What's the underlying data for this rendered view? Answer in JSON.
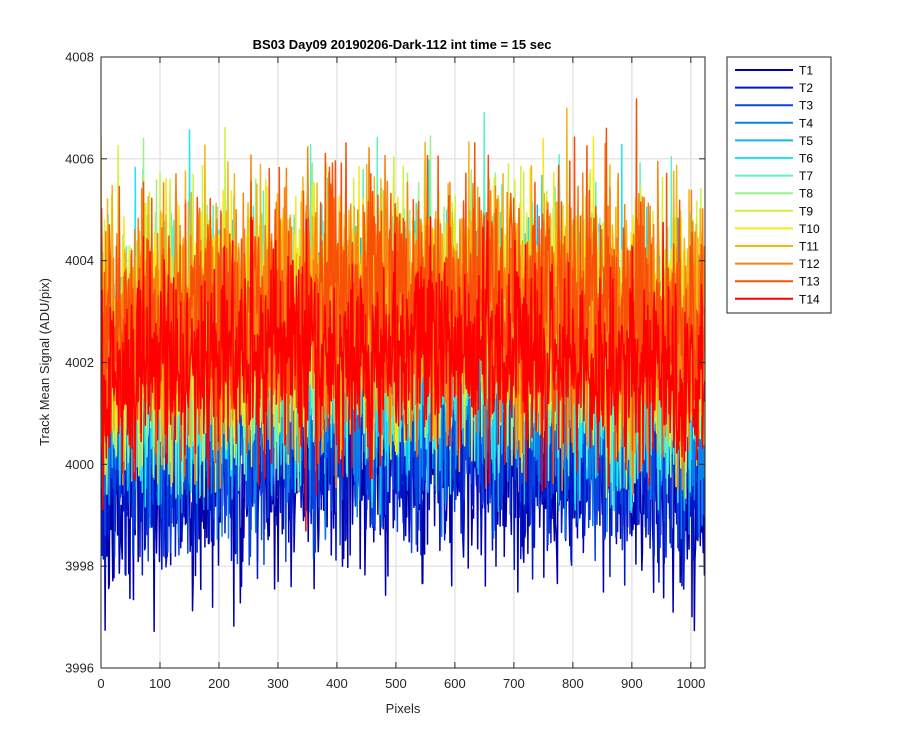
{
  "chart_data": {
    "type": "line",
    "title": "BS03 Day09 20190206-Dark-112 int time = 15 sec",
    "xlabel": "Pixels",
    "ylabel": "Track Mean Signal (ADU/pix)",
    "xlim": [
      0,
      1024
    ],
    "ylim": [
      3996,
      4008
    ],
    "xticks": [
      0,
      100,
      200,
      300,
      400,
      500,
      600,
      700,
      800,
      900,
      1000
    ],
    "yticks": [
      3996,
      3998,
      4000,
      4002,
      4004,
      4006,
      4008
    ],
    "grid": true,
    "legend_position": "outside-top-right",
    "x_points": 1024,
    "series": [
      {
        "name": "T1",
        "color": "#0000aa",
        "mean": 3999.9,
        "spread": 1.0,
        "min": 3996.7,
        "max": 4006.4
      },
      {
        "name": "T2",
        "color": "#0018cc",
        "mean": 4000.2,
        "spread": 1.0,
        "min": 3997.5,
        "max": 4005.0
      },
      {
        "name": "T3",
        "color": "#0a44e0",
        "mean": 4000.8,
        "spread": 1.1,
        "min": 3998.0,
        "max": 4005.5
      },
      {
        "name": "T4",
        "color": "#0a82ea",
        "mean": 4001.5,
        "spread": 1.2,
        "min": 3998.5,
        "max": 4006.0
      },
      {
        "name": "T5",
        "color": "#10b8f0",
        "mean": 4002.0,
        "spread": 1.2,
        "min": 3999.0,
        "max": 4007.3
      },
      {
        "name": "T6",
        "color": "#20e6f2",
        "mean": 4002.3,
        "spread": 1.2,
        "min": 3999.0,
        "max": 4007.0
      },
      {
        "name": "T7",
        "color": "#60f0c8",
        "mean": 4002.5,
        "spread": 1.2,
        "min": 3999.2,
        "max": 4007.1
      },
      {
        "name": "T8",
        "color": "#9af28a",
        "mean": 4002.7,
        "spread": 1.2,
        "min": 3999.3,
        "max": 4006.5
      },
      {
        "name": "T9",
        "color": "#d2f23e",
        "mean": 4002.8,
        "spread": 1.2,
        "min": 3999.3,
        "max": 4006.8
      },
      {
        "name": "T10",
        "color": "#f8e81a",
        "mean": 4002.9,
        "spread": 1.2,
        "min": 3999.3,
        "max": 4006.6
      },
      {
        "name": "T11",
        "color": "#f4b414",
        "mean": 4003.0,
        "spread": 1.2,
        "min": 3999.4,
        "max": 4007.0
      },
      {
        "name": "T12",
        "color": "#f88212",
        "mean": 4003.0,
        "spread": 1.2,
        "min": 3999.4,
        "max": 4006.3
      },
      {
        "name": "T13",
        "color": "#f85008",
        "mean": 4003.0,
        "spread": 1.2,
        "min": 3999.5,
        "max": 4007.3
      },
      {
        "name": "T14",
        "color": "#ff0000",
        "mean": 4002.0,
        "spread": 1.0,
        "min": 3998.5,
        "max": 4005.0
      }
    ]
  }
}
